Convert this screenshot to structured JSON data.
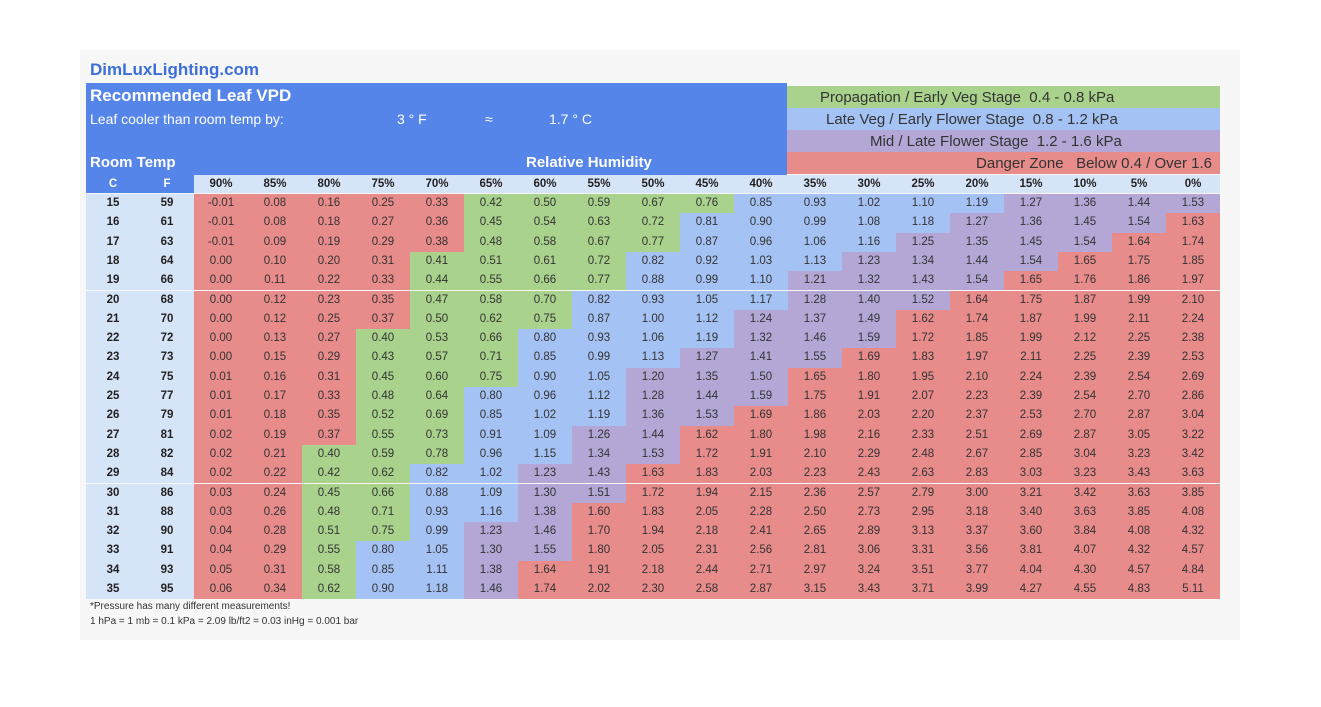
{
  "site": "DimLuxLighting.com",
  "header": {
    "title": "Recommended Leaf VPD",
    "subtitle_label": "Leaf cooler than room temp by:",
    "offset_f": "3 ° F",
    "approx": "≈",
    "offset_c": "1.7 ° C",
    "room_temp": "Room Temp",
    "relative_humidity": "Relative Humidity"
  },
  "legend": [
    {
      "label": "Propagation / Early Veg Stage  0.4 - 0.8 kPa",
      "color": "#a9d28c"
    },
    {
      "label": "Late Veg / Early Flower Stage  0.8 - 1.2 kPa",
      "color": "#a4c2f4"
    },
    {
      "label": "Mid / Late Flower Stage  1.2 - 1.6 kPa",
      "color": "#b4a7d6"
    },
    {
      "label": "Danger Zone   Below 0.4 / Over 1.6",
      "color": "#e88b8b"
    }
  ],
  "colors": {
    "header_blue": "#5585e8",
    "light_blue": "#d6e4f7",
    "site_blue": "#3d6fd9"
  },
  "footnote": [
    "*Pressure has many different measurements!",
    "1 hPa = 1 mb = 0.1 kPa = 2.09 lb/ft2 = 0.03 inHg = 0.001 bar"
  ],
  "chart_data": {
    "type": "table",
    "title": "Recommended Leaf VPD",
    "unit": "kPa",
    "temp_headers": [
      "C",
      "F"
    ],
    "humidity": [
      "90%",
      "85%",
      "80%",
      "75%",
      "70%",
      "65%",
      "60%",
      "55%",
      "50%",
      "45%",
      "40%",
      "35%",
      "30%",
      "25%",
      "20%",
      "15%",
      "10%",
      "5%",
      "0%"
    ],
    "rows": [
      {
        "c": "15",
        "f": "59",
        "v": [
          "-0.01",
          "0.08",
          "0.16",
          "0.25",
          "0.33",
          "0.42",
          "0.50",
          "0.59",
          "0.67",
          "0.76",
          "0.85",
          "0.93",
          "1.02",
          "1.10",
          "1.19",
          "1.27",
          "1.36",
          "1.44",
          "1.53"
        ]
      },
      {
        "c": "16",
        "f": "61",
        "v": [
          "-0.01",
          "0.08",
          "0.18",
          "0.27",
          "0.36",
          "0.45",
          "0.54",
          "0.63",
          "0.72",
          "0.81",
          "0.90",
          "0.99",
          "1.08",
          "1.18",
          "1.27",
          "1.36",
          "1.45",
          "1.54",
          "1.63"
        ]
      },
      {
        "c": "17",
        "f": "63",
        "v": [
          "-0.01",
          "0.09",
          "0.19",
          "0.29",
          "0.38",
          "0.48",
          "0.58",
          "0.67",
          "0.77",
          "0.87",
          "0.96",
          "1.06",
          "1.16",
          "1.25",
          "1.35",
          "1.45",
          "1.54",
          "1.64",
          "1.74"
        ]
      },
      {
        "c": "18",
        "f": "64",
        "v": [
          "0.00",
          "0.10",
          "0.20",
          "0.31",
          "0.41",
          "0.51",
          "0.61",
          "0.72",
          "0.82",
          "0.92",
          "1.03",
          "1.13",
          "1.23",
          "1.34",
          "1.44",
          "1.54",
          "1.65",
          "1.75",
          "1.85"
        ]
      },
      {
        "c": "19",
        "f": "66",
        "v": [
          "0.00",
          "0.11",
          "0.22",
          "0.33",
          "0.44",
          "0.55",
          "0.66",
          "0.77",
          "0.88",
          "0.99",
          "1.10",
          "1.21",
          "1.32",
          "1.43",
          "1.54",
          "1.65",
          "1.76",
          "1.86",
          "1.97"
        ]
      },
      {
        "c": "20",
        "f": "68",
        "v": [
          "0.00",
          "0.12",
          "0.23",
          "0.35",
          "0.47",
          "0.58",
          "0.70",
          "0.82",
          "0.93",
          "1.05",
          "1.17",
          "1.28",
          "1.40",
          "1.52",
          "1.64",
          "1.75",
          "1.87",
          "1.99",
          "2.10"
        ]
      },
      {
        "c": "21",
        "f": "70",
        "v": [
          "0.00",
          "0.12",
          "0.25",
          "0.37",
          "0.50",
          "0.62",
          "0.75",
          "0.87",
          "1.00",
          "1.12",
          "1.24",
          "1.37",
          "1.49",
          "1.62",
          "1.74",
          "1.87",
          "1.99",
          "2.11",
          "2.24"
        ]
      },
      {
        "c": "22",
        "f": "72",
        "v": [
          "0.00",
          "0.13",
          "0.27",
          "0.40",
          "0.53",
          "0.66",
          "0.80",
          "0.93",
          "1.06",
          "1.19",
          "1.32",
          "1.46",
          "1.59",
          "1.72",
          "1.85",
          "1.99",
          "2.12",
          "2.25",
          "2.38"
        ]
      },
      {
        "c": "23",
        "f": "73",
        "v": [
          "0.00",
          "0.15",
          "0.29",
          "0.43",
          "0.57",
          "0.71",
          "0.85",
          "0.99",
          "1.13",
          "1.27",
          "1.41",
          "1.55",
          "1.69",
          "1.83",
          "1.97",
          "2.11",
          "2.25",
          "2.39",
          "2.53"
        ]
      },
      {
        "c": "24",
        "f": "75",
        "v": [
          "0.01",
          "0.16",
          "0.31",
          "0.45",
          "0.60",
          "0.75",
          "0.90",
          "1.05",
          "1.20",
          "1.35",
          "1.50",
          "1.65",
          "1.80",
          "1.95",
          "2.10",
          "2.24",
          "2.39",
          "2.54",
          "2.69"
        ]
      },
      {
        "c": "25",
        "f": "77",
        "v": [
          "0.01",
          "0.17",
          "0.33",
          "0.48",
          "0.64",
          "0.80",
          "0.96",
          "1.12",
          "1.28",
          "1.44",
          "1.59",
          "1.75",
          "1.91",
          "2.07",
          "2.23",
          "2.39",
          "2.54",
          "2.70",
          "2.86"
        ]
      },
      {
        "c": "26",
        "f": "79",
        "v": [
          "0.01",
          "0.18",
          "0.35",
          "0.52",
          "0.69",
          "0.85",
          "1.02",
          "1.19",
          "1.36",
          "1.53",
          "1.69",
          "1.86",
          "2.03",
          "2.20",
          "2.37",
          "2.53",
          "2.70",
          "2.87",
          "3.04"
        ]
      },
      {
        "c": "27",
        "f": "81",
        "v": [
          "0.02",
          "0.19",
          "0.37",
          "0.55",
          "0.73",
          "0.91",
          "1.09",
          "1.26",
          "1.44",
          "1.62",
          "1.80",
          "1.98",
          "2.16",
          "2.33",
          "2.51",
          "2.69",
          "2.87",
          "3.05",
          "3.22"
        ]
      },
      {
        "c": "28",
        "f": "82",
        "v": [
          "0.02",
          "0.21",
          "0.40",
          "0.59",
          "0.78",
          "0.96",
          "1.15",
          "1.34",
          "1.53",
          "1.72",
          "1.91",
          "2.10",
          "2.29",
          "2.48",
          "2.67",
          "2.85",
          "3.04",
          "3.23",
          "3.42"
        ]
      },
      {
        "c": "29",
        "f": "84",
        "v": [
          "0.02",
          "0.22",
          "0.42",
          "0.62",
          "0.82",
          "1.02",
          "1.23",
          "1.43",
          "1.63",
          "1.83",
          "2.03",
          "2.23",
          "2.43",
          "2.63",
          "2.83",
          "3.03",
          "3.23",
          "3.43",
          "3.63"
        ]
      },
      {
        "c": "30",
        "f": "86",
        "v": [
          "0.03",
          "0.24",
          "0.45",
          "0.66",
          "0.88",
          "1.09",
          "1.30",
          "1.51",
          "1.72",
          "1.94",
          "2.15",
          "2.36",
          "2.57",
          "2.79",
          "3.00",
          "3.21",
          "3.42",
          "3.63",
          "3.85"
        ]
      },
      {
        "c": "31",
        "f": "88",
        "v": [
          "0.03",
          "0.26",
          "0.48",
          "0.71",
          "0.93",
          "1.16",
          "1.38",
          "1.60",
          "1.83",
          "2.05",
          "2.28",
          "2.50",
          "2.73",
          "2.95",
          "3.18",
          "3.40",
          "3.63",
          "3.85",
          "4.08"
        ]
      },
      {
        "c": "32",
        "f": "90",
        "v": [
          "0.04",
          "0.28",
          "0.51",
          "0.75",
          "0.99",
          "1.23",
          "1.46",
          "1.70",
          "1.94",
          "2.18",
          "2.41",
          "2.65",
          "2.89",
          "3.13",
          "3.37",
          "3.60",
          "3.84",
          "4.08",
          "4.32"
        ]
      },
      {
        "c": "33",
        "f": "91",
        "v": [
          "0.04",
          "0.29",
          "0.55",
          "0.80",
          "1.05",
          "1.30",
          "1.55",
          "1.80",
          "2.05",
          "2.31",
          "2.56",
          "2.81",
          "3.06",
          "3.31",
          "3.56",
          "3.81",
          "4.07",
          "4.32",
          "4.57"
        ]
      },
      {
        "c": "34",
        "f": "93",
        "v": [
          "0.05",
          "0.31",
          "0.58",
          "0.85",
          "1.11",
          "1.38",
          "1.64",
          "1.91",
          "2.18",
          "2.44",
          "2.71",
          "2.97",
          "3.24",
          "3.51",
          "3.77",
          "4.04",
          "4.30",
          "4.57",
          "4.84"
        ]
      },
      {
        "c": "35",
        "f": "95",
        "v": [
          "0.06",
          "0.34",
          "0.62",
          "0.90",
          "1.18",
          "1.46",
          "1.74",
          "2.02",
          "2.30",
          "2.58",
          "2.87",
          "3.15",
          "3.43",
          "3.71",
          "3.99",
          "4.27",
          "4.55",
          "4.83",
          "5.11"
        ]
      }
    ]
  }
}
